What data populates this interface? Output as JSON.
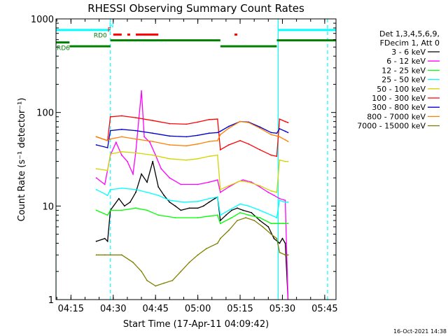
{
  "chart_data": {
    "type": "line",
    "title": "RHESSI Observing Summary Count Rates",
    "xlabel": "Start Time (17-Apr-11 04:09:42)",
    "ylabel": "Count Rate (s⁻¹ detector⁻¹)",
    "yscale": "log",
    "ylim": [
      1,
      1000
    ],
    "xlim": [
      "04:09:42",
      "05:49:00"
    ],
    "x_ticks": [
      "04:15",
      "04:30",
      "04:45",
      "05:00",
      "05:15",
      "05:30",
      "05:45"
    ],
    "y_ticks": [
      "1",
      "10",
      "100",
      "1000"
    ],
    "timestamp": "16-Oct-2021 14:38",
    "legend_header": [
      "Det 1,3,4,5,6,9,",
      "FDecim 1, Att 0"
    ],
    "legend_placement": "right",
    "series": [
      {
        "name": "3 - 6 keV",
        "color": "#000000",
        "points": [
          [
            "04:24",
            4.2
          ],
          [
            "04:27",
            4.5
          ],
          [
            "04:28",
            4.2
          ],
          [
            "04:29",
            9
          ],
          [
            "04:32",
            12
          ],
          [
            "04:34",
            10
          ],
          [
            "04:36",
            11
          ],
          [
            "04:38",
            14
          ],
          [
            "04:40",
            22
          ],
          [
            "04:42",
            18
          ],
          [
            "04:44",
            30
          ],
          [
            "04:46",
            16
          ],
          [
            "04:48",
            13
          ],
          [
            "04:50",
            11
          ],
          [
            "04:52",
            10
          ],
          [
            "04:54",
            9
          ],
          [
            "04:57",
            9.5
          ],
          [
            "05:00",
            9.5
          ],
          [
            "05:02",
            10
          ],
          [
            "05:04",
            11
          ],
          [
            "05:06",
            12
          ],
          [
            "05:07",
            12.5
          ],
          [
            "05:08",
            7
          ],
          [
            "05:10",
            8
          ],
          [
            "05:12",
            9
          ],
          [
            "05:14",
            9.5
          ],
          [
            "05:16",
            9
          ],
          [
            "05:19",
            8.5
          ],
          [
            "05:22",
            7
          ],
          [
            "05:25",
            6
          ],
          [
            "05:27",
            4.5
          ],
          [
            "05:29",
            4
          ],
          [
            "05:30",
            4.5
          ],
          [
            "05:31",
            4
          ],
          [
            "05:32",
            1
          ]
        ]
      },
      {
        "name": "6 - 12 keV",
        "color": "#ff00ff",
        "points": [
          [
            "04:24",
            20
          ],
          [
            "04:27",
            17
          ],
          [
            "04:29",
            35
          ],
          [
            "04:31",
            48
          ],
          [
            "04:33",
            35
          ],
          [
            "04:35",
            30
          ],
          [
            "04:37",
            22
          ],
          [
            "04:38",
            38
          ],
          [
            "04:40",
            170
          ],
          [
            "04:41",
            55
          ],
          [
            "04:43",
            48
          ],
          [
            "04:45",
            35
          ],
          [
            "04:47",
            25
          ],
          [
            "04:50",
            20
          ],
          [
            "04:54",
            17
          ],
          [
            "05:00",
            17
          ],
          [
            "05:04",
            18
          ],
          [
            "05:07",
            19
          ],
          [
            "05:08",
            14
          ],
          [
            "05:11",
            16
          ],
          [
            "05:14",
            18
          ],
          [
            "05:16",
            19
          ],
          [
            "05:19",
            18
          ],
          [
            "05:22",
            16
          ],
          [
            "05:25",
            14
          ],
          [
            "05:27",
            13
          ],
          [
            "05:29",
            12
          ],
          [
            "05:31",
            11.5
          ],
          [
            "05:32",
            1
          ]
        ]
      },
      {
        "name": "12 - 25 keV",
        "color": "#00ff00",
        "points": [
          [
            "04:24",
            9
          ],
          [
            "04:28",
            8
          ],
          [
            "04:29",
            9
          ],
          [
            "04:33",
            9
          ],
          [
            "04:38",
            9.5
          ],
          [
            "04:42",
            9
          ],
          [
            "04:46",
            8
          ],
          [
            "04:52",
            7.5
          ],
          [
            "05:00",
            7.5
          ],
          [
            "05:04",
            7.8
          ],
          [
            "05:07",
            8
          ],
          [
            "05:08",
            6.5
          ],
          [
            "05:12",
            7.5
          ],
          [
            "05:15",
            8.5
          ],
          [
            "05:18",
            8
          ],
          [
            "05:22",
            7.5
          ],
          [
            "05:26",
            6.5
          ],
          [
            "05:29",
            6.5
          ],
          [
            "05:31",
            6.5
          ],
          [
            "05:32",
            6.5
          ]
        ]
      },
      {
        "name": "25 - 50 keV",
        "color": "#00ffff",
        "points": [
          [
            "04:24",
            15
          ],
          [
            "04:28",
            13
          ],
          [
            "04:29",
            15
          ],
          [
            "04:33",
            15.5
          ],
          [
            "04:38",
            15
          ],
          [
            "04:42",
            14
          ],
          [
            "04:46",
            13
          ],
          [
            "04:50",
            11.5
          ],
          [
            "04:55",
            11
          ],
          [
            "05:00",
            11.2
          ],
          [
            "05:04",
            12
          ],
          [
            "05:07",
            12.5
          ],
          [
            "05:08",
            8
          ],
          [
            "05:11",
            9
          ],
          [
            "05:15",
            10.5
          ],
          [
            "05:18",
            10
          ],
          [
            "05:22",
            9
          ],
          [
            "05:26",
            8
          ],
          [
            "05:28",
            7.5
          ],
          [
            "05:29",
            11.5
          ],
          [
            "05:31",
            11
          ],
          [
            "05:32",
            11
          ]
        ]
      },
      {
        "name": "50 - 100 keV",
        "color": "#d4d400",
        "points": [
          [
            "04:24",
            25
          ],
          [
            "04:28",
            24
          ],
          [
            "04:29",
            36
          ],
          [
            "04:33",
            38
          ],
          [
            "04:38",
            37
          ],
          [
            "04:44",
            35
          ],
          [
            "04:50",
            32
          ],
          [
            "04:56",
            31
          ],
          [
            "05:00",
            32
          ],
          [
            "05:04",
            34
          ],
          [
            "05:07",
            35
          ],
          [
            "05:08",
            15
          ],
          [
            "05:11",
            16.5
          ],
          [
            "05:15",
            18.5
          ],
          [
            "05:18",
            18
          ],
          [
            "05:22",
            16.5
          ],
          [
            "05:26",
            14.5
          ],
          [
            "05:28",
            14
          ],
          [
            "05:29",
            31
          ],
          [
            "05:31",
            30
          ],
          [
            "05:32",
            30
          ]
        ]
      },
      {
        "name": "100 - 300 keV",
        "color": "#ff0000",
        "points": [
          [
            "04:24",
            55
          ],
          [
            "04:28",
            50
          ],
          [
            "04:29",
            90
          ],
          [
            "04:33",
            92
          ],
          [
            "04:38",
            88
          ],
          [
            "04:44",
            82
          ],
          [
            "04:50",
            76
          ],
          [
            "04:56",
            75
          ],
          [
            "05:00",
            79
          ],
          [
            "05:04",
            84
          ],
          [
            "05:07",
            85
          ],
          [
            "05:08",
            40
          ],
          [
            "05:11",
            45
          ],
          [
            "05:15",
            50
          ],
          [
            "05:18",
            46
          ],
          [
            "05:22",
            40
          ],
          [
            "05:26",
            35
          ],
          [
            "05:28",
            34
          ],
          [
            "05:29",
            85
          ],
          [
            "05:31",
            80
          ],
          [
            "05:32",
            78
          ]
        ]
      },
      {
        "name": "300 - 800 keV",
        "color": "#0000cc",
        "points": [
          [
            "04:24",
            45
          ],
          [
            "04:28",
            42
          ],
          [
            "04:29",
            64
          ],
          [
            "04:33",
            66
          ],
          [
            "04:38",
            64
          ],
          [
            "04:44",
            60
          ],
          [
            "04:50",
            56
          ],
          [
            "04:56",
            55
          ],
          [
            "05:00",
            57
          ],
          [
            "05:04",
            60
          ],
          [
            "05:07",
            61
          ],
          [
            "05:08",
            63
          ],
          [
            "05:11",
            71
          ],
          [
            "05:15",
            80
          ],
          [
            "05:18",
            79
          ],
          [
            "05:22",
            70
          ],
          [
            "05:26",
            61
          ],
          [
            "05:28",
            60
          ],
          [
            "05:29",
            67
          ],
          [
            "05:31",
            63
          ],
          [
            "05:32",
            61
          ]
        ]
      },
      {
        "name": "800 - 7000 keV",
        "color": "#ff8000",
        "points": [
          [
            "04:24",
            55
          ],
          [
            "04:28",
            50
          ],
          [
            "04:29",
            52
          ],
          [
            "04:33",
            55
          ],
          [
            "04:38",
            52
          ],
          [
            "04:44",
            49
          ],
          [
            "04:50",
            45
          ],
          [
            "04:56",
            44
          ],
          [
            "05:00",
            46
          ],
          [
            "05:04",
            49
          ],
          [
            "05:07",
            50
          ],
          [
            "05:08",
            58
          ],
          [
            "05:11",
            68
          ],
          [
            "05:15",
            80
          ],
          [
            "05:18",
            78
          ],
          [
            "05:22",
            68
          ],
          [
            "05:26",
            58
          ],
          [
            "05:28",
            56
          ],
          [
            "05:29",
            55
          ],
          [
            "05:31",
            51
          ],
          [
            "05:32",
            49
          ]
        ]
      },
      {
        "name": "7000 - 15000 keV",
        "color": "#808000",
        "points": [
          [
            "04:24",
            3
          ],
          [
            "04:27",
            3
          ],
          [
            "04:29",
            3
          ],
          [
            "04:33",
            3
          ],
          [
            "04:37",
            2.5
          ],
          [
            "04:40",
            2
          ],
          [
            "04:42",
            1.6
          ],
          [
            "04:45",
            1.4
          ],
          [
            "04:48",
            1.5
          ],
          [
            "04:51",
            1.6
          ],
          [
            "04:54",
            2
          ],
          [
            "04:57",
            2.5
          ],
          [
            "05:00",
            3
          ],
          [
            "05:03",
            3.5
          ],
          [
            "05:07",
            4
          ],
          [
            "05:08",
            4.5
          ],
          [
            "05:11",
            5.5
          ],
          [
            "05:14",
            7
          ],
          [
            "05:17",
            7.5
          ],
          [
            "05:20",
            7
          ],
          [
            "05:23",
            6
          ],
          [
            "05:26",
            5
          ],
          [
            "05:28",
            4.5
          ],
          [
            "05:29",
            3.2
          ],
          [
            "05:31",
            3
          ],
          [
            "05:32",
            3
          ]
        ]
      }
    ],
    "vertical_markers": [
      {
        "time": "04:09:42",
        "style": "solid",
        "color": "#00ffff"
      },
      {
        "time": "04:29:00",
        "style": "dashed",
        "color": "#00ffff"
      },
      {
        "time": "05:28:30",
        "style": "solid",
        "color": "#00ffff"
      },
      {
        "time": "05:46:00",
        "style": "dashed",
        "color": "#00ffff"
      }
    ],
    "state_bars": [
      {
        "label": "N",
        "color": "#00ffff",
        "level": 760,
        "segments": [
          [
            "04:09:42",
            "04:29:00"
          ],
          [
            "05:28:30",
            "05:49:00"
          ]
        ]
      },
      {
        "label": "F",
        "color": "#ff0000",
        "level": 680,
        "segments": [
          [
            "04:30",
            "04:33"
          ],
          [
            "04:35",
            "04:36"
          ],
          [
            "04:38",
            "04:46"
          ],
          [
            "05:13",
            "05:14"
          ]
        ]
      },
      {
        "label": "RD0",
        "color": "#008000",
        "level": 590,
        "segments": [
          [
            "04:29",
            "05:08"
          ],
          [
            "05:28",
            "05:49"
          ]
        ]
      },
      {
        "label": "RD6",
        "color": "#008000",
        "level": 560,
        "segments": [
          [
            "04:09:42",
            "04:14:30"
          ]
        ]
      },
      {
        "label": "",
        "color": "#008000",
        "level": 510,
        "segments": [
          [
            "04:14:30",
            "04:29"
          ],
          [
            "05:08",
            "05:28"
          ]
        ]
      }
    ]
  }
}
